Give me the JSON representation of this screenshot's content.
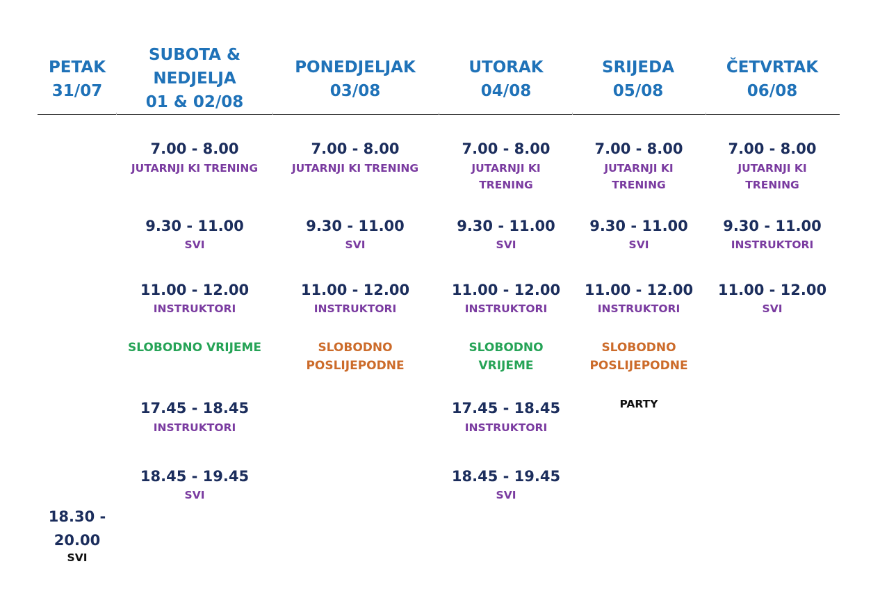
{
  "headers": [
    {
      "day": "PETAK",
      "date": "31/07"
    },
    {
      "day": "SUBOTA & NEDJELJA",
      "date": "01 & 02/08"
    },
    {
      "day": "PONEDJELJAK",
      "date": "03/08"
    },
    {
      "day": "UTORAK",
      "date": "04/08"
    },
    {
      "day": "SRIJEDA",
      "date": "05/08"
    },
    {
      "day": "ČETVRTAK",
      "date": "06/08"
    }
  ],
  "petak": {
    "time_a": "18.30 -",
    "time_b": "20.00",
    "label": "SVI"
  },
  "subota": [
    {
      "time": "7.00 - 8.00",
      "label": "JUTARNJI KI TRENING"
    },
    {
      "time": "9.30 - 11.00",
      "label": "SVI"
    },
    {
      "time": "11.00 - 12.00",
      "label": "INSTRUKTORI"
    },
    {
      "free": "SLOBODNO VRIJEME"
    },
    {
      "time": "17.45 - 18.45",
      "label": "INSTRUKTORI"
    },
    {
      "time": "18.45 - 19.45",
      "label": "SVI"
    }
  ],
  "ponedjeljak": [
    {
      "time": "7.00 - 8.00",
      "label": "JUTARNJI KI TRENING"
    },
    {
      "time": "9.30 - 11.00",
      "label": "SVI"
    },
    {
      "time": "11.00 - 12.00",
      "label": "INSTRUKTORI"
    },
    {
      "free": "SLOBODNO POSLIJEPODNE"
    }
  ],
  "utorak": [
    {
      "time": "7.00 - 8.00",
      "label": "JUTARNJI KI TRENING"
    },
    {
      "time": "9.30 - 11.00",
      "label": "SVI"
    },
    {
      "time": "11.00 - 12.00",
      "label": "INSTRUKTORI"
    },
    {
      "free": "SLOBODNO VRIJEME"
    },
    {
      "time": "17.45 - 18.45",
      "label": "INSTRUKTORI"
    },
    {
      "time": "18.45 - 19.45",
      "label": "SVI"
    }
  ],
  "srijeda": [
    {
      "time": "7.00 - 8.00",
      "label": "JUTARNJI KI TRENING"
    },
    {
      "time": "9.30 - 11.00",
      "label": "SVI"
    },
    {
      "time": "11.00 - 12.00",
      "label": "INSTRUKTORI"
    },
    {
      "free": "SLOBODNO POSLIJEPODNE"
    },
    {
      "label": "PARTY"
    }
  ],
  "cetvrtak": [
    {
      "time": "7.00 - 8.00",
      "label": "JUTARNJI KI TRENING"
    },
    {
      "time": "9.30 - 11.00",
      "label": "INSTRUKTORI"
    },
    {
      "time": "11.00 - 12.00",
      "label": "SVI"
    }
  ],
  "colors": {
    "header": "#1f72b8",
    "time": "#1b2d5c",
    "purple": "#7a3ba0",
    "green": "#25a356",
    "orange": "#cc6b2a"
  }
}
